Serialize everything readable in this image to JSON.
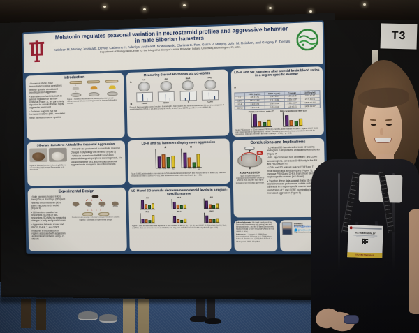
{
  "scene": {
    "sign_label": "T3",
    "badge": {
      "name": "KATHLEEN MUNLEY",
      "member_type": "STUDENT MEMBER"
    }
  },
  "palette": {
    "group_colors": [
      "#5c2a7a",
      "#e0762a",
      "#2f7a33",
      "#efd02f"
    ],
    "poster_navy": "#2e4e74",
    "iu_crimson": "#9d2235",
    "logo_green": "#2e8b3a",
    "carpet_blue": "#3a567f"
  },
  "poster": {
    "title": "Melatonin regulates seasonal variation in neurosteroid profiles and aggressive behavior in male Siberian hamsters",
    "authors": "Kathleen M. Munley, Jessica E. Deyoe, Catherine H. Adaniya, Andrea M. Nowakowski, Clarissa C. Ren, Grace V. Murphy, John M. Reinhart, and Gregory E. Demas",
    "affiliation": "Department of Biology and Center for the Integrative Study of Animal Behavior, Indiana University, Bloomington, IN, USA",
    "sections": {
      "introduction": {
        "heading": "Introduction",
        "bullets": [
          "Numerous studies have demonstrated positive correlations between gonadal steroids and breeding season aggression",
          "Alternative mechanisms, such as adrenal regulation or de novo synthesis (Figure 1), are particularly important for animals that are highly aggressive year-round",
          "Evidence suggests that the hormone melatonin (MEL) modulates these pathways in some species"
        ],
        "figure_caption": "Figure 1: Potential neuroendocrine pathways by which steroid hormones could affect territorial aggression in seasonally breeding animals."
      },
      "model": {
        "heading": "Siberian Hamsters: A Model for Seasonal Aggression",
        "bullets": [
          "Primarily use photoperiod to coordinate seasonal changes in physiology and behavior (Figure 2)",
          "While we have shown that MEL modulates seasonal changes in peripheral steroidogenesis, it is unknown whether MEL also mediates seasonal aggression via changes in neurosteroid levels"
        ],
        "figure_caption": "Figure 2: Siberian hamsters in breeding (left) and non-breeding (right) pelage. Photographs by A. Scherbarth."
      },
      "design": {
        "heading": "Experimental Design",
        "bullets": [
          "Male hamsters housed in long days (LDs) or short days (SDs) and received timed melatonin (M) or saline injections for 10 weeks (Figure 3)",
          "SD hamsters classified as responders (SD-Rs) or non-responders (SD-NRs) by measuring changes in body and gonadal mass",
          "Aggressive behavior scored and PROG, DHEA, T, and CORT measured in blood and brain regions associated with aggression and/or steroid synthesis using LC-MS/MS"
        ],
        "groups": [
          "LD",
          "LD-M",
          "SD-R",
          "SD-NR"
        ],
        "note": "Resident-intruder paradigm; behavioral scoring and blood/brain sampling",
        "figure_caption": "Figure 3: Schematic of experimental design."
      },
      "lcms": {
        "heading": "Measuring Steroid Hormones via LC-MS/MS",
        "panel_a_label": "A",
        "panel_b_label": "B",
        "regions": [
          "LS",
          "AH",
          "MeA",
          "PAG"
        ],
        "hormones": [
          "PROG",
          "DHEA",
          "T",
          "CORT"
        ],
        "figure_caption": "Figure 4: Representative coronal sections illustrating the brain regions that were microdissected (A) and chromatograms of steroid standards (0.5, 1.0, 2.5, and 10.0 ng of PROG, DHEA, T, and CORT) quantified via LC-MS/MS (B)."
      },
      "aggression": {
        "heading": "LD-M and SD hamsters display more aggression",
        "panel_labels": [
          "A",
          "B"
        ],
        "figure_caption": "Figure 5: MEL administration and exposure to SDs elevated attack duration (A) and reduced latency to attack (B). Data are presented as mean ± SEM (n = 8–10); bars with different letters differ significantly (p < 0.05)."
      },
      "neurosteroid": {
        "heading": "LD-M and SD animals decrease neurosteroid levels in a region-specific manner",
        "figure_caption": "Figure 6: MEL administration and exposure to SDs reduced DHEA (A, B), T (D, E), and CORT (C, F) levels in the AH, MeA, and PAG. Data are presented as mean ± SEM (n = 8–10); bars with different letters differ significantly (p < 0.05)."
      },
      "brainblood": {
        "heading": "LD-M and SD hamsters alter steroid brain:blood ratios in a region-specific manner",
        "panel_a_label": "A",
        "table": {
          "headers": [
            "",
            "PROG (ng/mL)",
            "DHEA (ng/mL)",
            "T (ng/mL)",
            "CORT (ng/mL)"
          ],
          "rows": [
            [
              "LD",
              "1.85 ± 0.41",
              "0.94 ± 0.17",
              "1.67 ± 0.38",
              "21.53 ± 2.67"
            ],
            [
              "LD-M",
              "2.64 ± 0.53*",
              "0.71 ± 0.09",
              "1.05 ± 0.18*",
              "27.76 ± 3.71"
            ],
            [
              "SD-R",
              "2.14 ± 0.60",
              "0.88 ± 0.14",
              "1.02 ± 0.14*",
              "18.25 ± 2.71*"
            ],
            [
              "SD-NR",
              "1.92 ± 0.46",
              "0.85 ± 0.12",
              "1.28 ± 0.21",
              "14.38 ± 2.06*"
            ]
          ]
        },
        "figure_caption": "Figure 7: Exposure to SDs increased PROG (A) and MEL administration reduced T (B) and CORT (C, D) brain:blood ratios in a region-specific manner. Circulating hormone levels are provided in Panel A for comparison. Data are presented as mean ± SEM (n = 6–10); * p < 0.05."
      },
      "conclusions": {
        "heading": "Conclusions and Implications",
        "bullets": [
          "LD-M and SD hamsters decrease circulating androgens in response to an aggressive encounter (Figure 7)",
          "MEL injections and SDs decrease T and CORT across regions, yet reduce DHEA only in the AH and PAG (Figure 6)",
          "LD-M and SD animals reduce CORT and T brain:blood ratios across regions (Figure 7), but increase PROG and DHEA brain:blood ratios in a region-specific manner (not shown)",
          "Together, these data suggest that a SD-like MEL signal increases prohormone uptake and/or de novo synthesis in a region-specific manner and elevates metabolism of T and CORT, culminating in increased aggression (Figure 8)"
        ],
        "mel_label": "MEL",
        "aggression_label": "AGGRESSION",
        "figure_caption": "Figure 8: Schematic of the proposed neuroendocrine circuit by which a short day-like MEL signal increases non-breeding aggression."
      },
      "acknowledgments": {
        "heading": "Acknowledgments:",
        "text": "We thank members of the Demas lab for assistance with animal care and behavioral testing, and the IU Mass Spectrometry Facility. Funded by NSF IOS-1656414 and an NSF GRFP (K.M.M.)."
      },
      "references": {
        "heading": "References:",
        "text": "1. Soma et al. (2008) Front Neuroendocrinol. 2. Demas et al. (2004) Horm Behav. 3. Rendon et al. (2015) Proc R Soc B. 4. Munley et al. (2020) J Exp Biol."
      },
      "contact": {
        "heading": "Contact:",
        "email": "kmunley@indiana.edu",
        "twitter": "@KathleenMunley",
        "website": "http://www.kmunley.com"
      }
    }
  },
  "chart_data": [
    {
      "id": "fig5A",
      "type": "bar",
      "title": "Attack duration",
      "categories": [
        "LD",
        "LD-M",
        "SD-R",
        "SD-NR"
      ],
      "values": [
        62,
        70,
        58,
        66
      ],
      "ylabel": "Attack duration (s)",
      "ylim": [
        0,
        100
      ]
    },
    {
      "id": "fig5B",
      "type": "bar",
      "title": "Latency to attack",
      "categories": [
        "LD",
        "LD-M",
        "SD-R",
        "SD-NR"
      ],
      "values": [
        78,
        52,
        28,
        72
      ],
      "ylabel": "Latency to attack (s)",
      "ylim": [
        0,
        100
      ]
    },
    {
      "id": "fig6",
      "type": "bar",
      "title": "Neurosteroid levels by brain region",
      "categories": [
        "LD",
        "LD-M",
        "SD-R",
        "SD-NR"
      ],
      "panels": [
        {
          "label": "A",
          "title": "AH",
          "values": [
            92,
            50,
            42,
            55
          ]
        },
        {
          "label": "B",
          "title": "MeA",
          "values": [
            70,
            42,
            36,
            46
          ]
        },
        {
          "label": "C",
          "title": "AH",
          "values": [
            80,
            46,
            40,
            50
          ]
        },
        {
          "label": "D",
          "title": "PAG",
          "values": [
            45,
            38,
            32,
            80
          ]
        },
        {
          "label": "E",
          "title": "MeA",
          "values": [
            66,
            38,
            30,
            44
          ]
        },
        {
          "label": "F",
          "title": "PAG",
          "values": [
            72,
            40,
            34,
            46
          ]
        }
      ]
    },
    {
      "id": "fig7C",
      "type": "bar",
      "title": "PAG brain:blood ratio (C)",
      "categories": [
        "LD",
        "LD-M",
        "SD-R",
        "SD-NR"
      ],
      "values": [
        88,
        38,
        30,
        48
      ],
      "ylim": [
        0,
        100
      ]
    },
    {
      "id": "fig7D",
      "type": "bar",
      "title": "PAG brain:blood ratio (D)",
      "categories": [
        "LD",
        "LD-M",
        "SD-R",
        "SD-NR"
      ],
      "values": [
        80,
        42,
        36,
        52
      ],
      "ylim": [
        0,
        100
      ]
    }
  ]
}
